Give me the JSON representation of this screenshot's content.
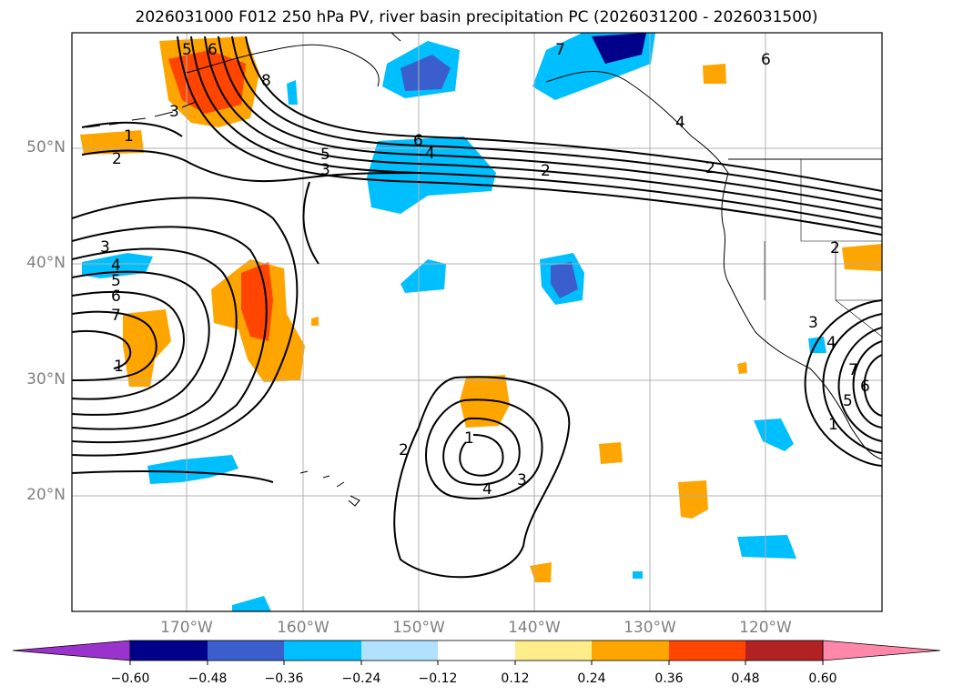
{
  "title": "2026031000 F012 250 hPa PV, river basin precipitation PC (2026031200 - 2026031500)",
  "lat_labels": [
    "50°N",
    "40°N",
    "30°N",
    "20°N"
  ],
  "lon_labels": [
    "170°W",
    "160°W",
    "150°W",
    "140°W",
    "130°W",
    "120°W"
  ],
  "colorbar": {
    "ticks": [
      "−0.60",
      "−0.48",
      "−0.36",
      "−0.24",
      "−0.12",
      "0.12",
      "0.24",
      "0.36",
      "0.48",
      "0.60"
    ],
    "colors": [
      "#9933cc",
      "#00008b",
      "#3a5fcd",
      "#00bfff",
      "#b0e2ff",
      "#ffffff",
      "#ffec8b",
      "#ffa500",
      "#ff4500",
      "#b22222",
      "#ff88aa"
    ]
  },
  "contour_labels": [
    "1",
    "2",
    "3",
    "4",
    "5",
    "6",
    "7",
    "8",
    "6",
    "4",
    "2",
    "5",
    "3",
    "2",
    "3",
    "4",
    "5",
    "6",
    "7",
    "1",
    "2",
    "3",
    "4",
    "1",
    "2",
    "3",
    "4",
    "5",
    "1",
    "6",
    "7",
    "6"
  ],
  "colors": {
    "coast": "#000000",
    "grid": "#b0b0b0",
    "axis_label": "#808080"
  }
}
